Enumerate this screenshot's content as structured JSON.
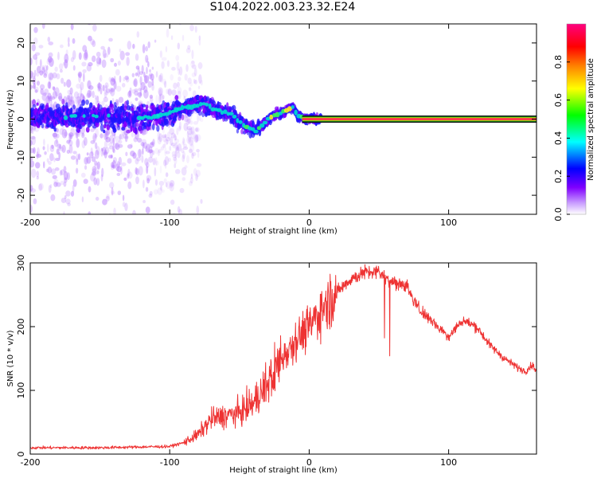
{
  "title": "S104.2022.003.23.32.E24",
  "colors": {
    "snr_line": "#ee3333",
    "band_outer": "#111111",
    "band_inner": "#ff2255",
    "cluster_dense": "#1e14ff",
    "cluster_core": "#00e0d0",
    "noise": "#b478ff"
  },
  "chart_data": [
    {
      "type": "heatmap",
      "title": "S104.2022.003.23.32.E24",
      "xlabel": "Height of straight line (km)",
      "ylabel": "Frequency (Hz)",
      "xlim": [
        -200,
        163
      ],
      "ylim": [
        -25,
        25
      ],
      "x_ticks": [
        "-200",
        "-100",
        "0",
        "100"
      ],
      "y_ticks": [
        "-20",
        "-10",
        "0",
        "10",
        "20"
      ],
      "colorbar": {
        "label": "Normalized spectral amplitude",
        "range": [
          0,
          1
        ],
        "ticks": [
          "0.0",
          "0.2",
          "0.4",
          "0.6",
          "0.8"
        ],
        "colormap": [
          "#ffffff",
          "#8000ff",
          "#0000ff",
          "#00ffff",
          "#00ff00",
          "#ffff00",
          "#ff8000",
          "#ff0000",
          "#ff0080"
        ]
      },
      "features": [
        {
          "name": "broadband noise",
          "x_range": [
            -200,
            -85
          ],
          "freq_spread": 25,
          "amplitude": 0.05
        },
        {
          "name": "Doppler wander",
          "points": [
            [
              -200,
              1
            ],
            [
              -175,
              0.5
            ],
            [
              -150,
              1
            ],
            [
              -125,
              0
            ],
            [
              -105,
              1
            ],
            [
              -90,
              3
            ],
            [
              -75,
              4
            ],
            [
              -65,
              2
            ],
            [
              -55,
              1
            ],
            [
              -45,
              -2
            ],
            [
              -38,
              -3
            ],
            [
              -32,
              -1
            ],
            [
              -25,
              1
            ],
            [
              -18,
              2
            ],
            [
              -12,
              3
            ],
            [
              -8,
              1
            ],
            [
              -4,
              0
            ],
            [
              10,
              0
            ]
          ],
          "amplitude": 0.35
        },
        {
          "name": "steady carrier",
          "x_range": [
            -5,
            163
          ],
          "frequency": 0,
          "amplitude": 1.0
        }
      ]
    },
    {
      "type": "line",
      "xlabel": "Height of straight line (km)",
      "ylabel": "SNR (10 * v/v)",
      "xlim": [
        -200,
        163
      ],
      "ylim": [
        0,
        300
      ],
      "x_ticks": [
        "-200",
        "-100",
        "0",
        "100"
      ],
      "y_ticks": [
        "0",
        "100",
        "200",
        "300"
      ],
      "series": [
        {
          "x": [
            -200,
            -150,
            -100,
            -90,
            -80,
            -70,
            -60,
            -50,
            -40,
            -30,
            -20,
            -10,
            0,
            10,
            20,
            30,
            40,
            50,
            60,
            70,
            75,
            80,
            90,
            100,
            110,
            120,
            130,
            140,
            150,
            155,
            160,
            163
          ],
          "values": [
            10,
            10,
            12,
            18,
            30,
            55,
            60,
            65,
            80,
            110,
            150,
            180,
            200,
            230,
            255,
            275,
            285,
            285,
            270,
            265,
            240,
            225,
            205,
            185,
            210,
            200,
            170,
            150,
            135,
            130,
            140,
            130
          ]
        }
      ]
    }
  ]
}
